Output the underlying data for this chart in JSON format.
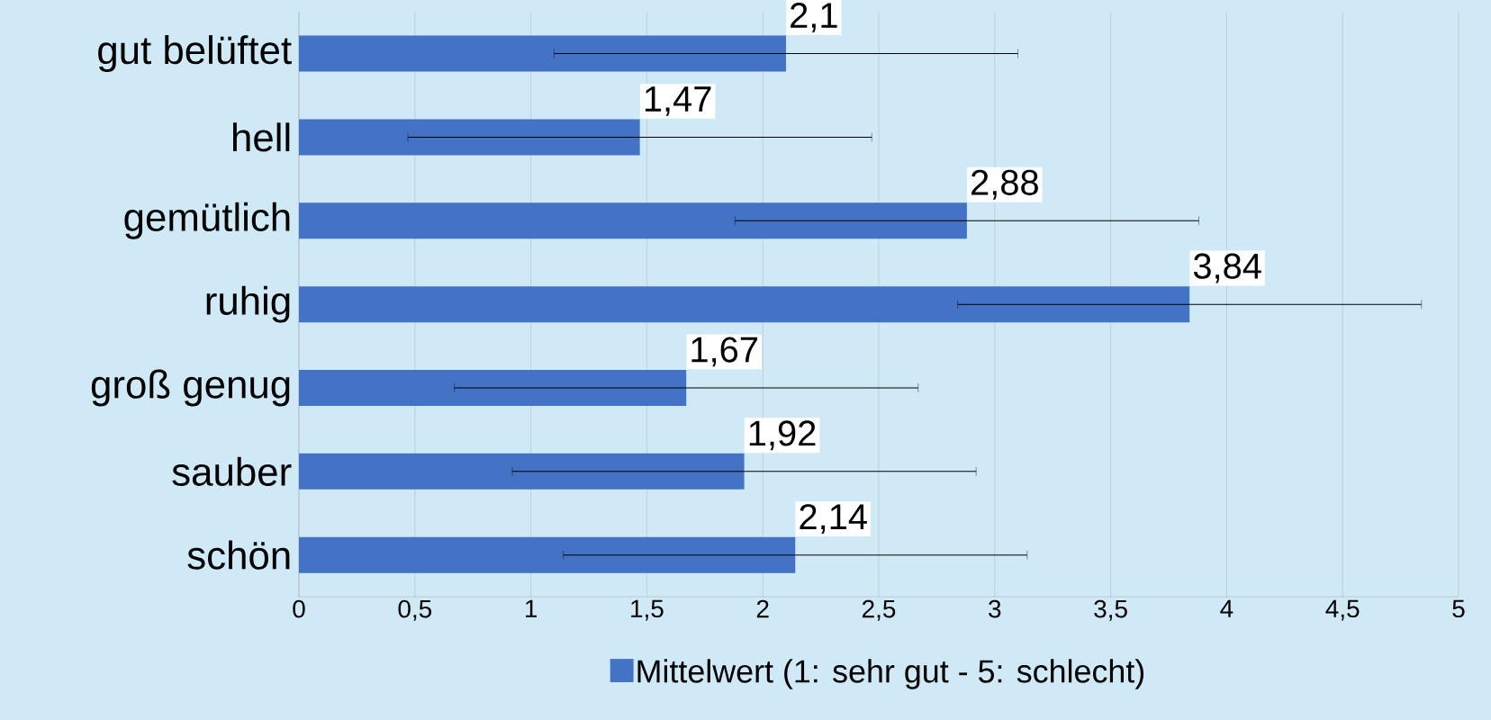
{
  "chart_data": {
    "type": "bar",
    "orientation": "horizontal",
    "categories": [
      "gut belüftet",
      "hell",
      "gemütlich",
      "ruhig",
      "groß genug",
      "sauber",
      "schön"
    ],
    "series": [
      {
        "name": "Mittelwert (1: sehr gut - 5: schlecht)",
        "color": "#4472c4",
        "values": [
          2.1,
          1.47,
          2.88,
          3.84,
          1.67,
          1.92,
          2.14
        ],
        "errors": [
          1,
          1,
          1,
          1,
          1,
          1,
          1
        ],
        "value_labels": [
          "2,1",
          "1,47",
          "2,88",
          "3,84",
          "1,67",
          "1,92",
          "2,14"
        ]
      }
    ],
    "xlim": [
      0,
      5
    ],
    "xticks": [
      0,
      {
        "value": 0.5,
        "label": "0,5"
      },
      1,
      {
        "value": 1.5,
        "label": "1,5"
      },
      2,
      {
        "value": 2.5,
        "label": "2,5"
      },
      3,
      {
        "value": 3.5,
        "label": "3,5"
      },
      4,
      {
        "value": 4.5,
        "label": "4,5"
      },
      5
    ],
    "grid": "x",
    "legend": "bottom"
  }
}
